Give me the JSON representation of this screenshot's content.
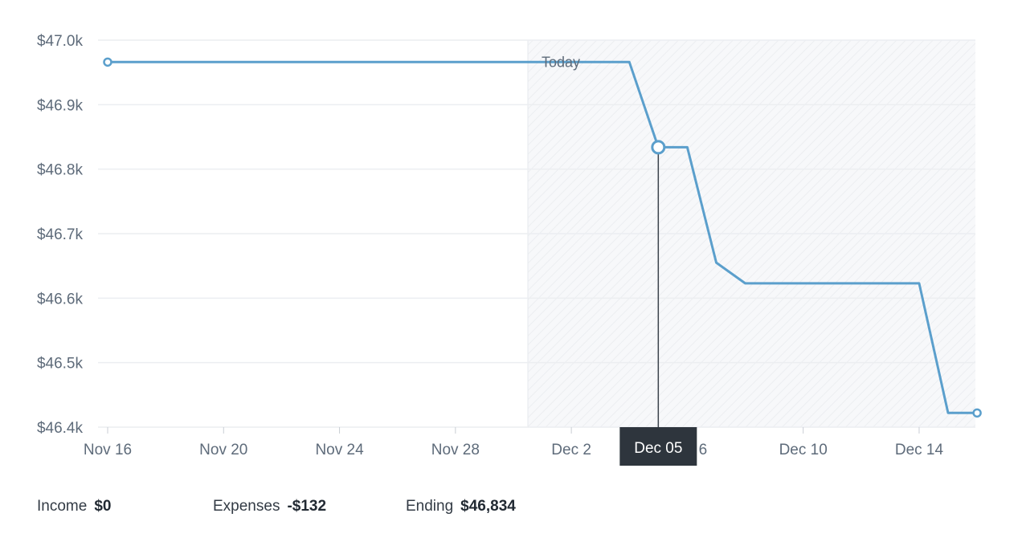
{
  "chart_data": {
    "type": "line",
    "series": [
      {
        "x": [
          "Nov 16",
          "Dec 4",
          "Dec 5",
          "Dec 6",
          "Dec 7",
          "Dec 8",
          "Dec 14",
          "Dec 15",
          "Dec 16"
        ],
        "values": [
          46966,
          46966,
          46834,
          46834,
          46655,
          46623,
          46623,
          46422,
          46422
        ],
        "color": "#5b9fcc"
      }
    ],
    "x_range": [
      "Nov 16",
      "Dec 16"
    ],
    "xticks": [
      "Nov 16",
      "Nov 20",
      "Nov 24",
      "Nov 28",
      "Dec 2",
      "Dec 6",
      "Dec 10",
      "Dec 14"
    ],
    "yticks": [
      "$47.0k",
      "$46.9k",
      "$46.8k",
      "$46.7k",
      "$46.6k",
      "$46.5k",
      "$46.4k"
    ],
    "ylim": [
      46400,
      47000
    ],
    "grid": true,
    "today_marker": {
      "date": "Dec 1",
      "label": "Today"
    },
    "hover": {
      "date": "Dec 5",
      "label": "Dec 05",
      "value": 46834
    },
    "colors": {
      "line": "#5b9fcc",
      "tooltip_bg": "#2e353d",
      "future_shade": "#f4f6f8"
    }
  },
  "summary": {
    "income": {
      "label": "Income",
      "value": "$0"
    },
    "expenses": {
      "label": "Expenses",
      "value": "-$132"
    },
    "ending": {
      "label": "Ending",
      "value": "$46,834"
    }
  }
}
